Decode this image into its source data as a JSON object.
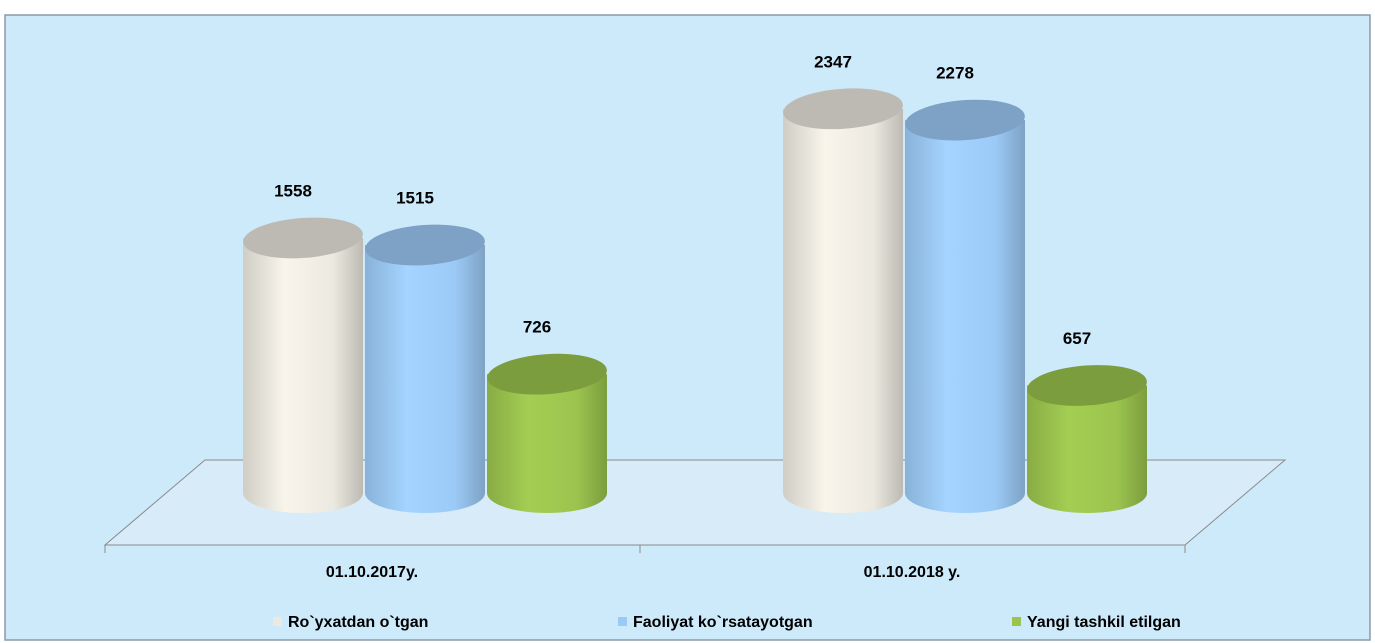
{
  "chart_data": {
    "type": "bar3d",
    "categories": [
      "01.10.2017y.",
      "01.10.2018 y."
    ],
    "series": [
      {
        "name": "Ro`yxatdan o`tgan",
        "color": "#ece9e0",
        "values": [
          1558,
          2347
        ]
      },
      {
        "name": "Faoliyat ko`rsatayotgan",
        "color": "#9ccaf6",
        "values": [
          1515,
          2278
        ]
      },
      {
        "name": "Yangi tashkil etilgan",
        "color": "#9bc44e",
        "values": [
          726,
          657
        ]
      }
    ]
  }
}
